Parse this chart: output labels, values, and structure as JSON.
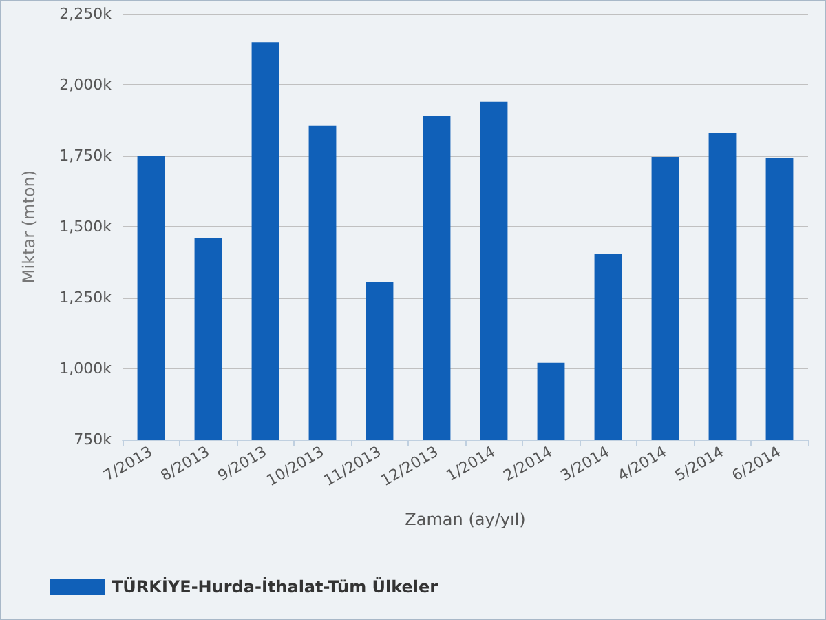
{
  "chart_data": {
    "type": "bar",
    "xlabel": "Zaman (ay/yıl)",
    "ylabel": "Miktar (mton)",
    "categories": [
      "7/2013",
      "8/2013",
      "9/2013",
      "10/2013",
      "11/2013",
      "12/2013",
      "1/2014",
      "2/2014",
      "3/2014",
      "4/2014",
      "5/2014",
      "6/2014"
    ],
    "series": [
      {
        "name": "TÜRKİYE-Hurda-İthalat-Tüm Ülkeler",
        "color": "#1060b8",
        "values": [
          1750,
          1460,
          2150,
          1855,
          1305,
          1890,
          1940,
          1020,
          1405,
          1745,
          1830,
          1740
        ]
      }
    ],
    "ylim": [
      750,
      2250
    ],
    "yticks": [
      {
        "value": 750,
        "label": "750k"
      },
      {
        "value": 1000,
        "label": "1,000k"
      },
      {
        "value": 1250,
        "label": "1,250k"
      },
      {
        "value": 1500,
        "label": "1,500k"
      },
      {
        "value": 1750,
        "label": "1,750k"
      },
      {
        "value": 2000,
        "label": "2,000k"
      },
      {
        "value": 2250,
        "label": "2,250k"
      }
    ],
    "grid": "y",
    "legend": "bottom left"
  }
}
